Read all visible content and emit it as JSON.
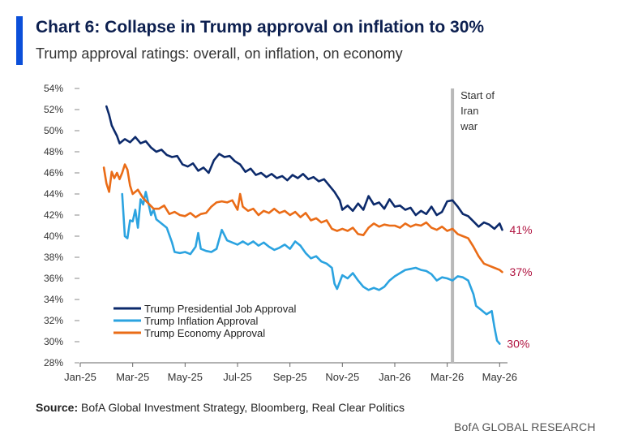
{
  "header": {
    "title": "Chart 6: Collapse in Trump approval on inflation to 30%",
    "subtitle": "Trump approval ratings: overall, on inflation, on economy"
  },
  "footer": {
    "source_label": "Source:",
    "source_text": "BofA Global Investment Strategy, Bloomberg, Real Clear Politics",
    "brand": "BofA GLOBAL RESEARCH"
  },
  "chart_data": {
    "type": "line",
    "title": "Chart 6: Collapse in Trump approval on inflation to 30%",
    "subtitle": "Trump approval ratings: overall, on inflation, on economy",
    "xlabel": "",
    "ylabel": "",
    "x_range": [
      0,
      16.3
    ],
    "x_unit": "months since Jan-25",
    "ylim": [
      28,
      54
    ],
    "y_ticks": [
      "28%",
      "30%",
      "32%",
      "34%",
      "36%",
      "38%",
      "40%",
      "42%",
      "44%",
      "46%",
      "48%",
      "50%",
      "52%",
      "54%"
    ],
    "y_tick_values": [
      28,
      30,
      32,
      34,
      36,
      38,
      40,
      42,
      44,
      46,
      48,
      50,
      52,
      54
    ],
    "x_ticks": [
      {
        "label": "Jan-25",
        "x": 0
      },
      {
        "label": "Mar-25",
        "x": 2
      },
      {
        "label": "May-25",
        "x": 4
      },
      {
        "label": "Jul-25",
        "x": 6
      },
      {
        "label": "Sep-25",
        "x": 8
      },
      {
        "label": "Nov-25",
        "x": 10
      },
      {
        "label": "Jan-26",
        "x": 12
      },
      {
        "label": "Mar-26",
        "x": 14
      },
      {
        "label": "May-26",
        "x": 16
      }
    ],
    "grid": false,
    "legend_position": "bottom-left",
    "annotation": {
      "label_lines": [
        "Start of",
        "Iran",
        "war"
      ],
      "x": 14.2
    },
    "series": [
      {
        "name": "Trump Presidential Job Approval",
        "color": "#0c2a6b",
        "end_label": "41%",
        "points": [
          [
            1.0,
            52.3
          ],
          [
            1.1,
            51.5
          ],
          [
            1.2,
            50.5
          ],
          [
            1.3,
            50.0
          ],
          [
            1.4,
            49.5
          ],
          [
            1.5,
            48.8
          ],
          [
            1.7,
            49.2
          ],
          [
            1.9,
            48.9
          ],
          [
            2.1,
            49.4
          ],
          [
            2.3,
            48.8
          ],
          [
            2.5,
            49.0
          ],
          [
            2.7,
            48.4
          ],
          [
            2.9,
            48.0
          ],
          [
            3.1,
            48.2
          ],
          [
            3.3,
            47.7
          ],
          [
            3.5,
            47.5
          ],
          [
            3.7,
            47.6
          ],
          [
            3.9,
            46.8
          ],
          [
            4.1,
            46.6
          ],
          [
            4.3,
            46.9
          ],
          [
            4.5,
            46.2
          ],
          [
            4.7,
            46.5
          ],
          [
            4.9,
            46.0
          ],
          [
            5.1,
            47.2
          ],
          [
            5.3,
            47.8
          ],
          [
            5.5,
            47.5
          ],
          [
            5.7,
            47.6
          ],
          [
            5.9,
            47.1
          ],
          [
            6.1,
            46.8
          ],
          [
            6.3,
            46.1
          ],
          [
            6.5,
            46.4
          ],
          [
            6.7,
            45.8
          ],
          [
            6.9,
            46.0
          ],
          [
            7.1,
            45.6
          ],
          [
            7.3,
            45.9
          ],
          [
            7.5,
            45.5
          ],
          [
            7.7,
            45.7
          ],
          [
            7.9,
            45.3
          ],
          [
            8.1,
            45.8
          ],
          [
            8.3,
            45.5
          ],
          [
            8.5,
            45.9
          ],
          [
            8.7,
            45.4
          ],
          [
            8.9,
            45.6
          ],
          [
            9.1,
            45.2
          ],
          [
            9.3,
            45.4
          ],
          [
            9.5,
            44.8
          ],
          [
            9.7,
            44.2
          ],
          [
            9.9,
            43.4
          ],
          [
            10.0,
            42.5
          ],
          [
            10.2,
            42.9
          ],
          [
            10.4,
            42.4
          ],
          [
            10.6,
            43.1
          ],
          [
            10.8,
            42.5
          ],
          [
            11.0,
            43.8
          ],
          [
            11.2,
            43.0
          ],
          [
            11.4,
            43.2
          ],
          [
            11.6,
            42.6
          ],
          [
            11.8,
            43.5
          ],
          [
            12.0,
            42.8
          ],
          [
            12.2,
            42.9
          ],
          [
            12.4,
            42.5
          ],
          [
            12.6,
            42.7
          ],
          [
            12.8,
            42.0
          ],
          [
            13.0,
            42.4
          ],
          [
            13.2,
            42.1
          ],
          [
            13.4,
            42.8
          ],
          [
            13.6,
            42.0
          ],
          [
            13.8,
            42.3
          ],
          [
            14.0,
            43.3
          ],
          [
            14.2,
            43.4
          ],
          [
            14.4,
            42.8
          ],
          [
            14.6,
            42.1
          ],
          [
            14.8,
            41.9
          ],
          [
            15.0,
            41.4
          ],
          [
            15.2,
            40.9
          ],
          [
            15.4,
            41.3
          ],
          [
            15.6,
            41.1
          ],
          [
            15.8,
            40.7
          ],
          [
            16.0,
            41.2
          ],
          [
            16.1,
            40.6
          ]
        ]
      },
      {
        "name": "Trump Inflation Approval",
        "color": "#2ba3e0",
        "end_label": "30%",
        "points": [
          [
            1.6,
            44.0
          ],
          [
            1.7,
            40.0
          ],
          [
            1.8,
            39.8
          ],
          [
            1.9,
            41.5
          ],
          [
            2.0,
            41.4
          ],
          [
            2.1,
            42.5
          ],
          [
            2.2,
            40.8
          ],
          [
            2.3,
            43.5
          ],
          [
            2.4,
            43.0
          ],
          [
            2.5,
            44.2
          ],
          [
            2.6,
            43.1
          ],
          [
            2.7,
            42.0
          ],
          [
            2.8,
            42.5
          ],
          [
            2.9,
            41.6
          ],
          [
            3.1,
            41.2
          ],
          [
            3.3,
            40.8
          ],
          [
            3.5,
            39.4
          ],
          [
            3.6,
            38.5
          ],
          [
            3.8,
            38.4
          ],
          [
            4.0,
            38.5
          ],
          [
            4.2,
            38.3
          ],
          [
            4.4,
            39.0
          ],
          [
            4.5,
            40.3
          ],
          [
            4.6,
            38.8
          ],
          [
            4.8,
            38.6
          ],
          [
            5.0,
            38.5
          ],
          [
            5.2,
            38.8
          ],
          [
            5.4,
            40.6
          ],
          [
            5.6,
            39.6
          ],
          [
            5.8,
            39.4
          ],
          [
            6.0,
            39.2
          ],
          [
            6.2,
            39.5
          ],
          [
            6.4,
            39.2
          ],
          [
            6.6,
            39.5
          ],
          [
            6.8,
            39.1
          ],
          [
            7.0,
            39.4
          ],
          [
            7.2,
            39.0
          ],
          [
            7.4,
            38.7
          ],
          [
            7.6,
            38.9
          ],
          [
            7.8,
            39.2
          ],
          [
            8.0,
            38.8
          ],
          [
            8.2,
            39.5
          ],
          [
            8.4,
            39.1
          ],
          [
            8.6,
            38.4
          ],
          [
            8.8,
            37.9
          ],
          [
            9.0,
            38.1
          ],
          [
            9.2,
            37.6
          ],
          [
            9.4,
            37.4
          ],
          [
            9.6,
            37.0
          ],
          [
            9.7,
            35.5
          ],
          [
            9.8,
            35.0
          ],
          [
            10.0,
            36.3
          ],
          [
            10.2,
            36.0
          ],
          [
            10.4,
            36.5
          ],
          [
            10.6,
            35.8
          ],
          [
            10.8,
            35.2
          ],
          [
            11.0,
            34.9
          ],
          [
            11.2,
            35.1
          ],
          [
            11.4,
            34.9
          ],
          [
            11.6,
            35.2
          ],
          [
            11.8,
            35.8
          ],
          [
            12.0,
            36.2
          ],
          [
            12.2,
            36.5
          ],
          [
            12.4,
            36.8
          ],
          [
            12.6,
            36.9
          ],
          [
            12.8,
            37.0
          ],
          [
            13.0,
            36.8
          ],
          [
            13.2,
            36.7
          ],
          [
            13.4,
            36.4
          ],
          [
            13.6,
            35.8
          ],
          [
            13.8,
            36.1
          ],
          [
            14.0,
            36.0
          ],
          [
            14.2,
            35.8
          ],
          [
            14.4,
            36.2
          ],
          [
            14.6,
            36.1
          ],
          [
            14.8,
            35.8
          ],
          [
            15.0,
            34.5
          ],
          [
            15.1,
            33.4
          ],
          [
            15.3,
            33.0
          ],
          [
            15.5,
            32.6
          ],
          [
            15.7,
            32.9
          ],
          [
            15.8,
            31.4
          ],
          [
            15.9,
            30.1
          ],
          [
            16.0,
            29.8
          ]
        ]
      },
      {
        "name": "Trump Economy Approval",
        "color": "#ea6c17",
        "end_label": "37%",
        "points": [
          [
            0.9,
            46.5
          ],
          [
            1.0,
            45.0
          ],
          [
            1.1,
            44.2
          ],
          [
            1.2,
            46.1
          ],
          [
            1.3,
            45.5
          ],
          [
            1.4,
            46.0
          ],
          [
            1.5,
            45.4
          ],
          [
            1.6,
            46.0
          ],
          [
            1.7,
            46.8
          ],
          [
            1.8,
            46.3
          ],
          [
            1.9,
            44.8
          ],
          [
            2.0,
            44.0
          ],
          [
            2.2,
            44.4
          ],
          [
            2.4,
            43.6
          ],
          [
            2.6,
            43.1
          ],
          [
            2.8,
            42.6
          ],
          [
            3.0,
            42.6
          ],
          [
            3.2,
            42.9
          ],
          [
            3.4,
            42.1
          ],
          [
            3.6,
            42.3
          ],
          [
            3.8,
            42.0
          ],
          [
            4.0,
            41.9
          ],
          [
            4.2,
            42.2
          ],
          [
            4.4,
            41.8
          ],
          [
            4.6,
            42.1
          ],
          [
            4.8,
            42.2
          ],
          [
            5.0,
            42.8
          ],
          [
            5.2,
            43.2
          ],
          [
            5.4,
            43.3
          ],
          [
            5.6,
            43.2
          ],
          [
            5.8,
            43.4
          ],
          [
            6.0,
            42.5
          ],
          [
            6.1,
            44.0
          ],
          [
            6.2,
            42.8
          ],
          [
            6.4,
            42.4
          ],
          [
            6.6,
            42.6
          ],
          [
            6.8,
            42.0
          ],
          [
            7.0,
            42.4
          ],
          [
            7.2,
            42.2
          ],
          [
            7.4,
            42.6
          ],
          [
            7.6,
            42.2
          ],
          [
            7.8,
            42.4
          ],
          [
            8.0,
            42.0
          ],
          [
            8.2,
            42.3
          ],
          [
            8.4,
            41.8
          ],
          [
            8.6,
            42.2
          ],
          [
            8.8,
            41.5
          ],
          [
            9.0,
            41.7
          ],
          [
            9.2,
            41.3
          ],
          [
            9.4,
            41.5
          ],
          [
            9.6,
            40.7
          ],
          [
            9.8,
            40.5
          ],
          [
            10.0,
            40.7
          ],
          [
            10.2,
            40.5
          ],
          [
            10.4,
            40.8
          ],
          [
            10.6,
            40.2
          ],
          [
            10.8,
            40.1
          ],
          [
            11.0,
            40.8
          ],
          [
            11.2,
            41.2
          ],
          [
            11.4,
            40.9
          ],
          [
            11.6,
            41.1
          ],
          [
            11.8,
            41.0
          ],
          [
            12.0,
            41.0
          ],
          [
            12.2,
            40.8
          ],
          [
            12.4,
            41.2
          ],
          [
            12.6,
            40.9
          ],
          [
            12.8,
            41.1
          ],
          [
            13.0,
            41.0
          ],
          [
            13.2,
            41.3
          ],
          [
            13.4,
            40.8
          ],
          [
            13.6,
            40.6
          ],
          [
            13.8,
            40.9
          ],
          [
            14.0,
            40.5
          ],
          [
            14.2,
            40.7
          ],
          [
            14.4,
            40.2
          ],
          [
            14.6,
            40.0
          ],
          [
            14.8,
            39.8
          ],
          [
            15.0,
            39.0
          ],
          [
            15.2,
            38.1
          ],
          [
            15.4,
            37.4
          ],
          [
            15.6,
            37.2
          ],
          [
            15.8,
            37.0
          ],
          [
            16.0,
            36.8
          ],
          [
            16.1,
            36.6
          ]
        ]
      }
    ]
  }
}
